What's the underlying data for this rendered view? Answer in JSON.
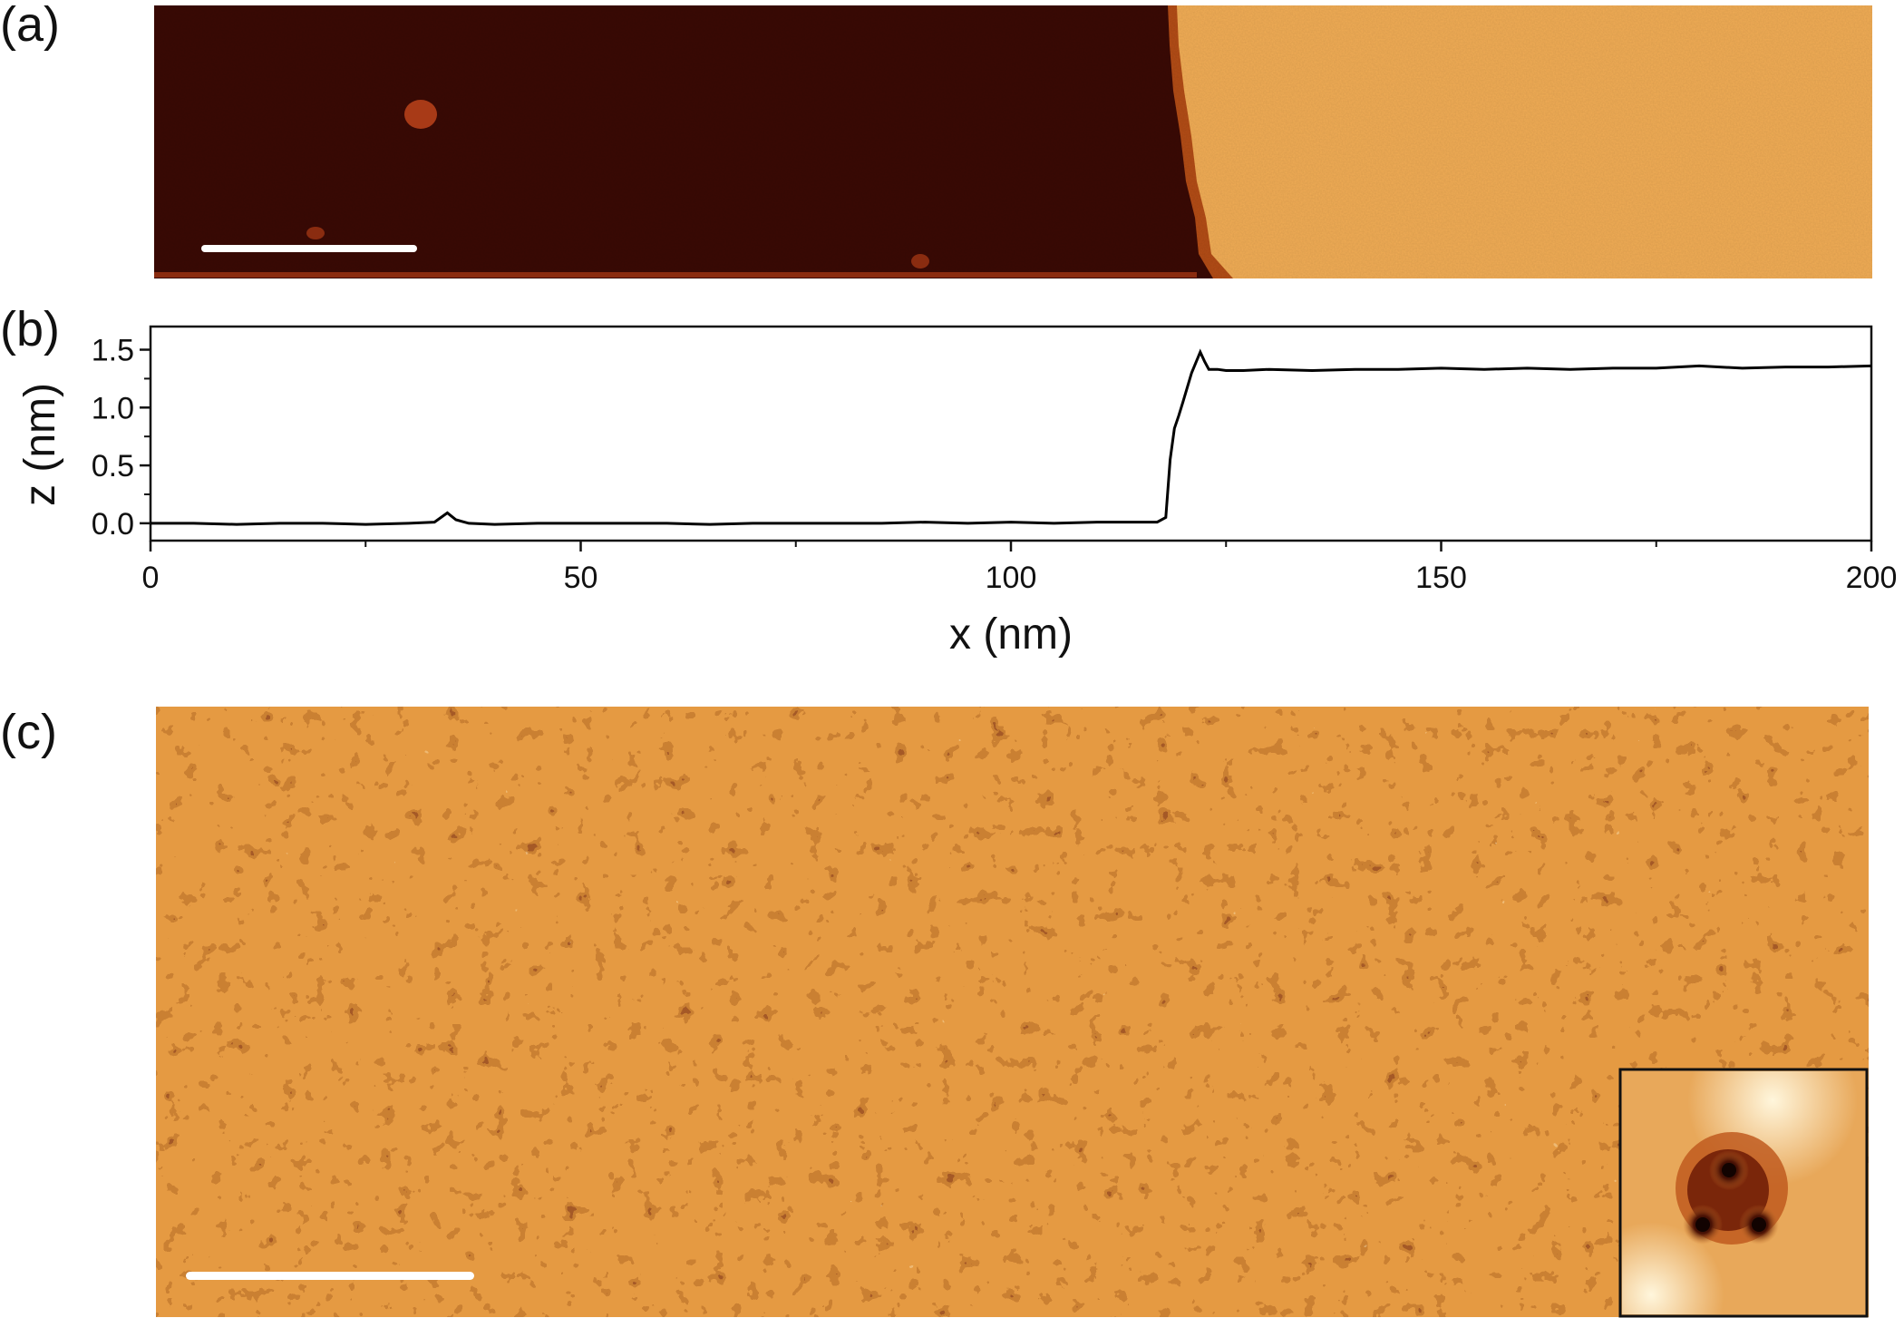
{
  "figure": {
    "panel_labels": [
      "(a)",
      "(b)",
      "(c)"
    ],
    "colors": {
      "substrate_dark": "#3a0a05",
      "film_gold": "#f0ac55",
      "afm_mid": "#e59a42",
      "afm_dark": "#7a2c0c",
      "afm_bright": "#fff2cf",
      "scale_bar": "#ffffff",
      "profile_line": "#000000"
    }
  },
  "chart_data": {
    "type": "line",
    "xlabel": "x (nm)",
    "ylabel": "z (nm)",
    "xlim": [
      0,
      200
    ],
    "ylim": [
      -0.15,
      1.7
    ],
    "xticks": [
      0,
      50,
      100,
      150,
      200
    ],
    "yticks": [
      0.0,
      0.5,
      1.0,
      1.5
    ],
    "xtick_labels": [
      "0",
      "50",
      "100",
      "150",
      "200"
    ],
    "ytick_labels": [
      "0.0",
      "0.5",
      "1.0",
      "1.5"
    ],
    "series": [
      {
        "x": [
          0,
          5,
          10,
          15,
          20,
          25,
          30,
          33,
          34.5,
          35.5,
          37,
          40,
          45,
          50,
          55,
          60,
          65,
          70,
          75,
          80,
          85,
          90,
          95,
          100,
          105,
          110,
          115,
          117,
          118,
          118.5,
          119,
          119.5,
          120,
          121,
          122,
          122.5,
          123,
          124,
          125,
          127,
          130,
          135,
          140,
          145,
          150,
          155,
          160,
          165,
          170,
          175,
          180,
          185,
          190,
          195,
          200
        ],
        "y": [
          0.0,
          0.0,
          -0.01,
          0.0,
          0.0,
          -0.01,
          0.0,
          0.01,
          0.09,
          0.03,
          0.0,
          -0.01,
          0.0,
          0.0,
          0.0,
          0.0,
          -0.01,
          0.0,
          0.0,
          0.0,
          0.0,
          0.01,
          0.0,
          0.01,
          0.0,
          0.01,
          0.01,
          0.01,
          0.05,
          0.55,
          0.82,
          0.93,
          1.05,
          1.3,
          1.48,
          1.4,
          1.33,
          1.33,
          1.32,
          1.32,
          1.33,
          1.32,
          1.33,
          1.33,
          1.34,
          1.33,
          1.34,
          1.33,
          1.34,
          1.34,
          1.36,
          1.34,
          1.35,
          1.35,
          1.36
        ]
      }
    ]
  }
}
